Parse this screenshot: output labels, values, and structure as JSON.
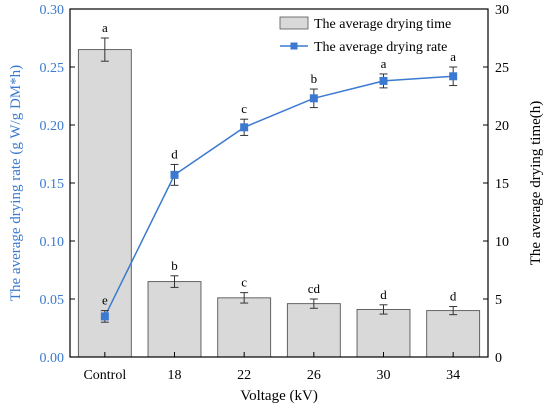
{
  "chart_data": {
    "type": "bar+line",
    "categories": [
      "Control",
      "18",
      "22",
      "26",
      "30",
      "34"
    ],
    "xlabel": "Voltage (kV)",
    "left_axis": {
      "label": "The average drying rate (g W/g DM*h)",
      "range": [
        0,
        0.3
      ],
      "ticks": [
        "0.00",
        "0.05",
        "0.10",
        "0.15",
        "0.20",
        "0.25",
        "0.30"
      ],
      "color": "#3b7ad0"
    },
    "right_axis": {
      "label": "The average drying time(h)",
      "range": [
        0,
        30
      ],
      "ticks": [
        "0",
        "5",
        "10",
        "15",
        "20",
        "25",
        "30"
      ]
    },
    "series": [
      {
        "name": "The average drying time",
        "type": "bar",
        "axis": "right",
        "values": [
          26.5,
          6.5,
          5.1,
          4.6,
          4.1,
          4.0
        ],
        "errors": [
          1.0,
          0.5,
          0.45,
          0.4,
          0.4,
          0.35
        ],
        "letters": [
          "a",
          "b",
          "c",
          "cd",
          "d",
          "d"
        ],
        "color": "#d9d9d9"
      },
      {
        "name": "The average drying rate",
        "type": "line",
        "axis": "left",
        "values": [
          0.035,
          0.157,
          0.198,
          0.223,
          0.238,
          0.242
        ],
        "errors": [
          0.005,
          0.009,
          0.007,
          0.008,
          0.006,
          0.008
        ],
        "letters": [
          "e",
          "d",
          "c",
          "b",
          "a",
          "a"
        ],
        "color": "#3b7ad0"
      }
    ],
    "legend": "top-right"
  }
}
